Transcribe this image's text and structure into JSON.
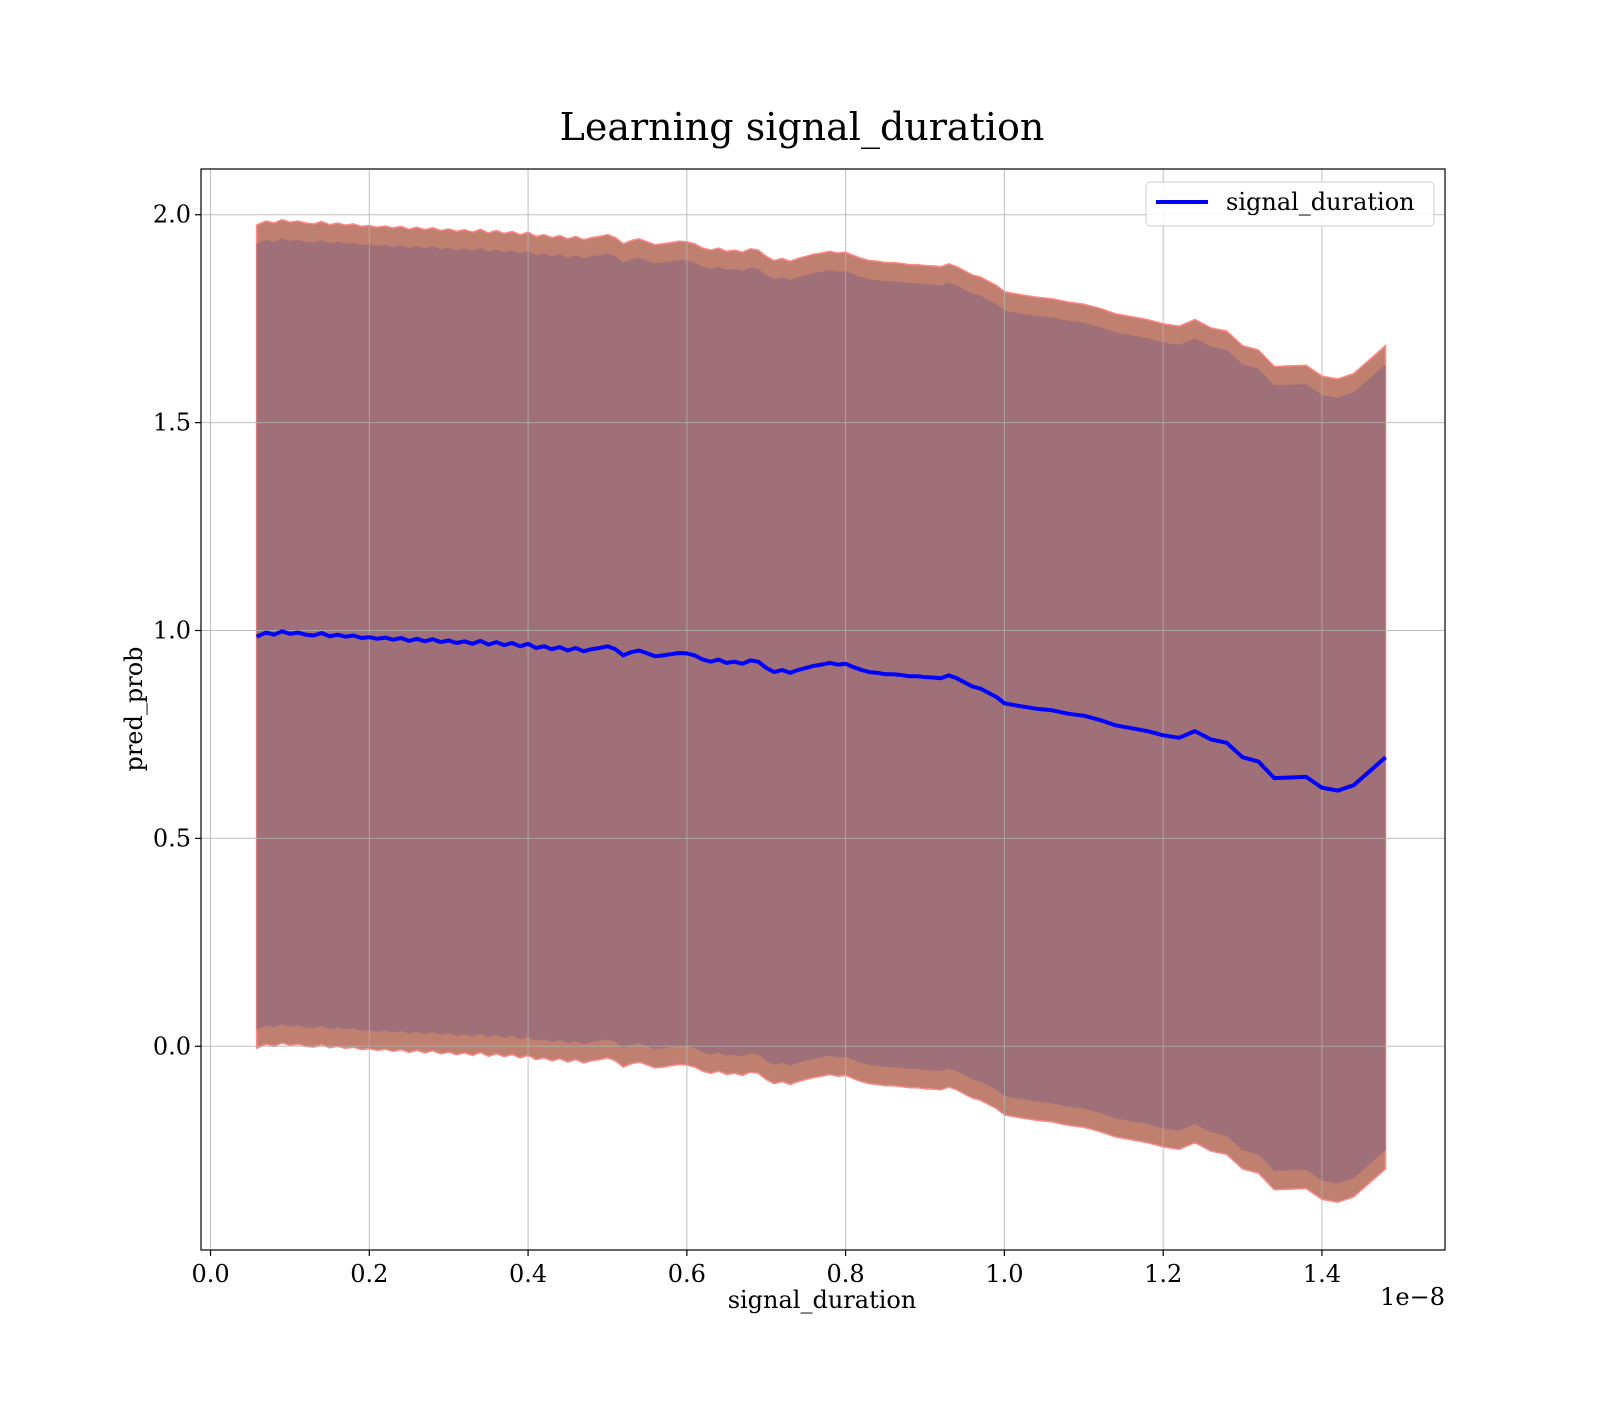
{
  "chart_data": {
    "type": "line",
    "title": "Learning signal_duration",
    "xlabel": "signal_duration",
    "ylabel": "pred_prob",
    "x_offset_label": "1e−8",
    "x_tick_labels": [
      "0.0",
      "0.2",
      "0.4",
      "0.6",
      "0.8",
      "1.0",
      "1.2",
      "1.4"
    ],
    "y_tick_labels": [
      "0.0",
      "0.5",
      "1.0",
      "1.5",
      "2.0"
    ],
    "x_ticks": [
      0.0,
      0.2,
      0.4,
      0.6,
      0.8,
      1.0,
      1.2,
      1.4
    ],
    "y_ticks": [
      0.0,
      0.5,
      1.0,
      1.5,
      2.0
    ],
    "xlim": [
      -0.012,
      1.555
    ],
    "ylim": [
      -0.49,
      2.11
    ],
    "grid": true,
    "legend_position": "top-right",
    "series": [
      {
        "name": "signal_duration",
        "color": "#0000ff",
        "x": [
          0.058,
          0.07,
          0.08,
          0.09,
          0.1,
          0.11,
          0.12,
          0.13,
          0.14,
          0.15,
          0.16,
          0.17,
          0.18,
          0.19,
          0.2,
          0.21,
          0.22,
          0.23,
          0.24,
          0.25,
          0.26,
          0.27,
          0.28,
          0.29,
          0.3,
          0.31,
          0.32,
          0.33,
          0.34,
          0.35,
          0.36,
          0.37,
          0.38,
          0.39,
          0.4,
          0.41,
          0.42,
          0.43,
          0.44,
          0.45,
          0.46,
          0.47,
          0.48,
          0.49,
          0.5,
          0.51,
          0.52,
          0.53,
          0.54,
          0.55,
          0.56,
          0.57,
          0.58,
          0.59,
          0.6,
          0.61,
          0.62,
          0.63,
          0.64,
          0.65,
          0.66,
          0.67,
          0.68,
          0.69,
          0.7,
          0.71,
          0.72,
          0.73,
          0.74,
          0.75,
          0.76,
          0.77,
          0.78,
          0.79,
          0.8,
          0.81,
          0.82,
          0.83,
          0.84,
          0.85,
          0.86,
          0.87,
          0.88,
          0.89,
          0.9,
          0.91,
          0.92,
          0.93,
          0.94,
          0.95,
          0.96,
          0.97,
          0.98,
          0.99,
          1.0,
          1.02,
          1.04,
          1.06,
          1.08,
          1.1,
          1.12,
          1.14,
          1.16,
          1.18,
          1.2,
          1.22,
          1.24,
          1.26,
          1.28,
          1.3,
          1.32,
          1.34,
          1.38,
          1.4,
          1.42,
          1.44,
          1.48
        ],
        "values": [
          0.985,
          0.995,
          0.99,
          0.998,
          0.992,
          0.995,
          0.99,
          0.988,
          0.994,
          0.986,
          0.99,
          0.985,
          0.988,
          0.982,
          0.984,
          0.98,
          0.983,
          0.978,
          0.982,
          0.975,
          0.98,
          0.974,
          0.979,
          0.972,
          0.976,
          0.97,
          0.974,
          0.968,
          0.975,
          0.966,
          0.972,
          0.965,
          0.97,
          0.962,
          0.968,
          0.958,
          0.962,
          0.955,
          0.96,
          0.952,
          0.958,
          0.95,
          0.955,
          0.958,
          0.962,
          0.955,
          0.94,
          0.948,
          0.952,
          0.945,
          0.938,
          0.94,
          0.943,
          0.946,
          0.945,
          0.94,
          0.93,
          0.925,
          0.93,
          0.922,
          0.925,
          0.92,
          0.928,
          0.925,
          0.91,
          0.9,
          0.905,
          0.898,
          0.905,
          0.91,
          0.915,
          0.918,
          0.922,
          0.918,
          0.92,
          0.912,
          0.905,
          0.9,
          0.898,
          0.895,
          0.895,
          0.893,
          0.89,
          0.89,
          0.888,
          0.887,
          0.885,
          0.892,
          0.885,
          0.875,
          0.865,
          0.86,
          0.85,
          0.84,
          0.825,
          0.818,
          0.812,
          0.808,
          0.8,
          0.795,
          0.785,
          0.772,
          0.765,
          0.758,
          0.748,
          0.742,
          0.758,
          0.738,
          0.73,
          0.695,
          0.685,
          0.645,
          0.648,
          0.622,
          0.615,
          0.628,
          0.695
        ]
      }
    ],
    "bands": [
      {
        "name": "",
        "color": "#c08070",
        "upper_offset": 0.99,
        "lower_offset": 0.99
      },
      {
        "name": "",
        "color": "#a07078",
        "upper_offset": 0.945,
        "lower_offset": 0.945
      }
    ]
  }
}
